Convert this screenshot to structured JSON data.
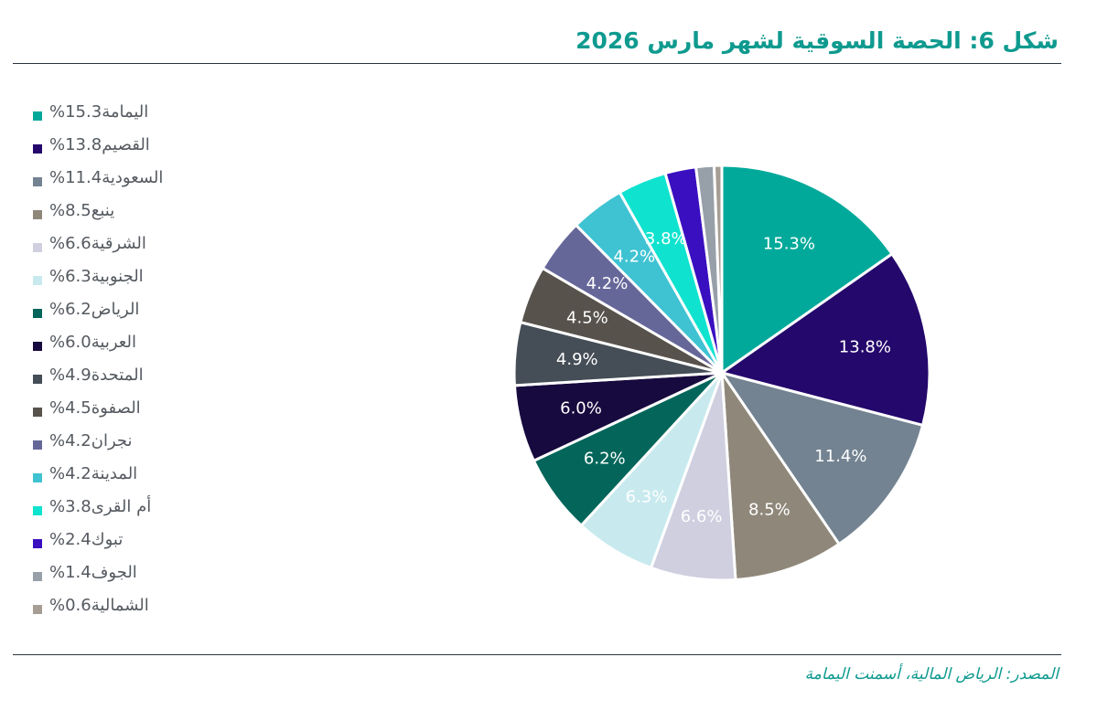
{
  "title": "شكل 6: الحصة السوقية لشهر مارس 2026",
  "source": "المصدر: الرياض المالية، أسمنت اليمامة",
  "chart_data": {
    "type": "pie",
    "title": "شكل 6: الحصة السوقية لشهر مارس 2026",
    "legend_position": "left",
    "slices": [
      {
        "name": "اليمامة",
        "value": 15.3,
        "label": "15.3%",
        "legend": "اليمامة15.3%",
        "color": "#00a99a",
        "text_color": "#ffffff"
      },
      {
        "name": "القصيم",
        "value": 13.8,
        "label": "13.8%",
        "legend": "القصيم13.8%",
        "color": "#24086c",
        "text_color": "#ffffff"
      },
      {
        "name": "السعودية",
        "value": 11.4,
        "label": "11.4%",
        "legend": "السعودية11.4%",
        "color": "#738391",
        "text_color": "#ffffff"
      },
      {
        "name": "ينبع",
        "value": 8.5,
        "label": "8.5%",
        "legend": "ينبع8.5%",
        "color": "#8f887a",
        "text_color": "#ffffff"
      },
      {
        "name": "الشرقية",
        "value": 6.6,
        "label": "6.6%",
        "legend": "الشرقية6.6%",
        "color": "#cfcfe0",
        "text_color": "#ffffff"
      },
      {
        "name": "الجنوبية",
        "value": 6.3,
        "label": "6.3%",
        "legend": "الجنوبية6.3%",
        "color": "#c8eaee",
        "text_color": "#ffffff"
      },
      {
        "name": "الرياض",
        "value": 6.2,
        "label": "6.2%",
        "legend": "الرياض6.2%",
        "color": "#04665a",
        "text_color": "#ffffff"
      },
      {
        "name": "العربية",
        "value": 6.0,
        "label": "6.0%",
        "legend": "العربية6.0%",
        "color": "#170a3e",
        "text_color": "#ffffff"
      },
      {
        "name": "المتحدة",
        "value": 4.9,
        "label": "4.9%",
        "legend": "المتحدة4.9%",
        "color": "#454d56",
        "text_color": "#ffffff"
      },
      {
        "name": "الصفوة",
        "value": 4.5,
        "label": "4.5%",
        "legend": "الصفوة4.5%",
        "color": "#57524b",
        "text_color": "#ffffff"
      },
      {
        "name": "نجران",
        "value": 4.2,
        "label": "4.2%",
        "legend": "نجران4.2%",
        "color": "#666799",
        "text_color": "#ffffff"
      },
      {
        "name": "المدينة",
        "value": 4.2,
        "label": "4.2%",
        "legend": "المدينة4.2%",
        "color": "#3fc3d2",
        "text_color": "#ffffff"
      },
      {
        "name": "أم القرى",
        "value": 3.8,
        "label": "3.8%",
        "legend": "أم القرى3.8%",
        "color": "#0fe3cf",
        "text_color": "#ffffff"
      },
      {
        "name": "تبوك",
        "value": 2.4,
        "label": "",
        "legend": "تبوك2.4%",
        "color": "#3a0fc0",
        "text_color": "#ffffff"
      },
      {
        "name": "الجوف",
        "value": 1.4,
        "label": "",
        "legend": "الجوف1.4%",
        "color": "#97a0a8",
        "text_color": "#ffffff"
      },
      {
        "name": "الشمالية",
        "value": 0.6,
        "label": "",
        "legend": "الشمالية0.6%",
        "color": "#a69e94",
        "text_color": "#ffffff"
      }
    ]
  }
}
